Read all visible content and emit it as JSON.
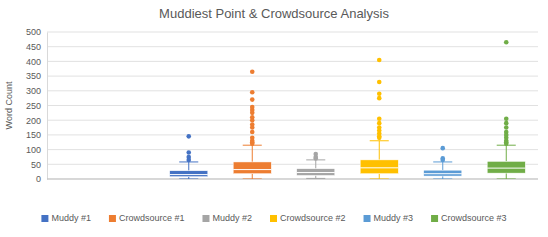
{
  "chart_data": {
    "type": "box",
    "title": "Muddiest Point & Crowdsource Analysis",
    "y_label": "Word Count",
    "ylim": [
      0,
      500
    ],
    "yticks": [
      0,
      50,
      100,
      150,
      200,
      250,
      300,
      350,
      400,
      450,
      500
    ],
    "grid": true,
    "legend": "bottom",
    "series": [
      {
        "name": "Muddy #1",
        "color": "#4472c4",
        "min": 0,
        "q1": 8,
        "median": 15,
        "q3": 28,
        "max": 58,
        "outliers": [
          145,
          90,
          75,
          65
        ]
      },
      {
        "name": "Crowdsource #1",
        "color": "#ed7d31",
        "min": 0,
        "q1": 18,
        "median": 32,
        "q3": 58,
        "max": 115,
        "outliers": [
          365,
          295,
          270,
          245,
          235,
          225,
          210,
          200,
          185,
          175,
          160,
          140,
          130,
          125,
          120
        ]
      },
      {
        "name": "Muddy #2",
        "color": "#a5a5a5",
        "min": 2,
        "q1": 12,
        "median": 22,
        "q3": 35,
        "max": 65,
        "outliers": [
          85,
          75,
          70
        ]
      },
      {
        "name": "Crowdsource #2",
        "color": "#ffc000",
        "min": 0,
        "q1": 18,
        "median": 38,
        "q3": 65,
        "max": 130,
        "outliers": [
          405,
          330,
          290,
          275,
          205,
          190,
          175,
          165,
          155,
          145,
          140
        ]
      },
      {
        "name": "Muddy #3",
        "color": "#5b9bd5",
        "min": 0,
        "q1": 10,
        "median": 18,
        "q3": 30,
        "max": 58,
        "outliers": [
          105,
          70,
          65
        ]
      },
      {
        "name": "Crowdsource #3",
        "color": "#70ad47",
        "min": 0,
        "q1": 20,
        "median": 37,
        "q3": 60,
        "max": 115,
        "outliers": [
          465,
          205,
          190,
          175,
          160,
          150,
          140,
          130,
          125,
          120
        ]
      }
    ]
  }
}
